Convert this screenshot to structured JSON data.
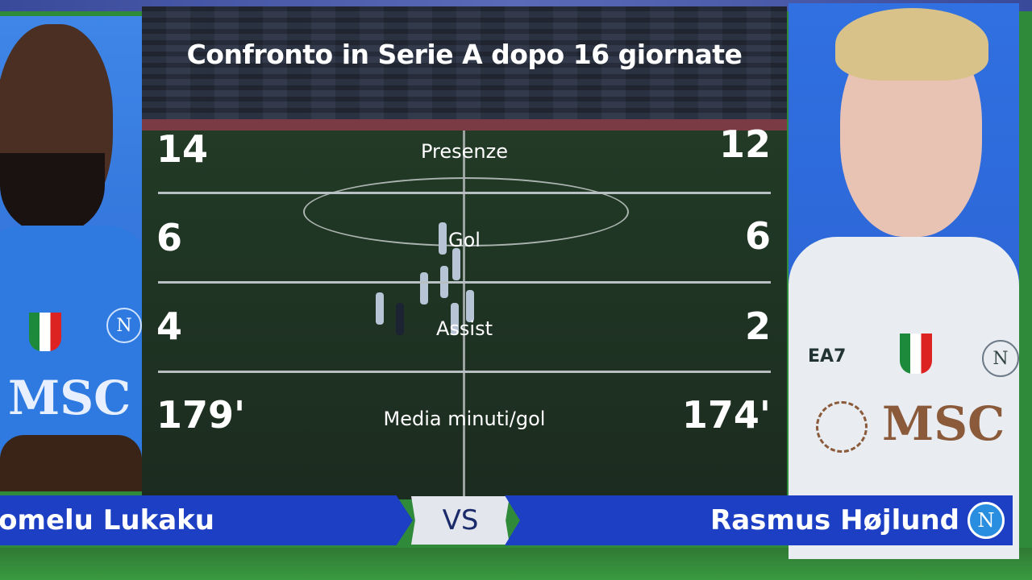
{
  "title": "Confronto in Serie A dopo 16 giornate",
  "stats": [
    {
      "label": "Presenze",
      "left": "14",
      "right": "12"
    },
    {
      "label": "Gol",
      "left": "6",
      "right": "6"
    },
    {
      "label": "Assist",
      "left": "4",
      "right": "2"
    },
    {
      "label": "Media minuti/gol",
      "left": "179'",
      "right": "174'"
    }
  ],
  "left_player": {
    "name": "Romelu Lukaku",
    "sponsor": "MSC",
    "crest": "N"
  },
  "right_player": {
    "name": "Rasmus Højlund",
    "sponsor": "MSC",
    "kit_brand": "EA7",
    "crest": "N"
  },
  "vs_label": "VS",
  "colors": {
    "bar_blue": "#1c3fc4",
    "photo_blue": "#3070e0",
    "pitch": "#1d2a22"
  }
}
